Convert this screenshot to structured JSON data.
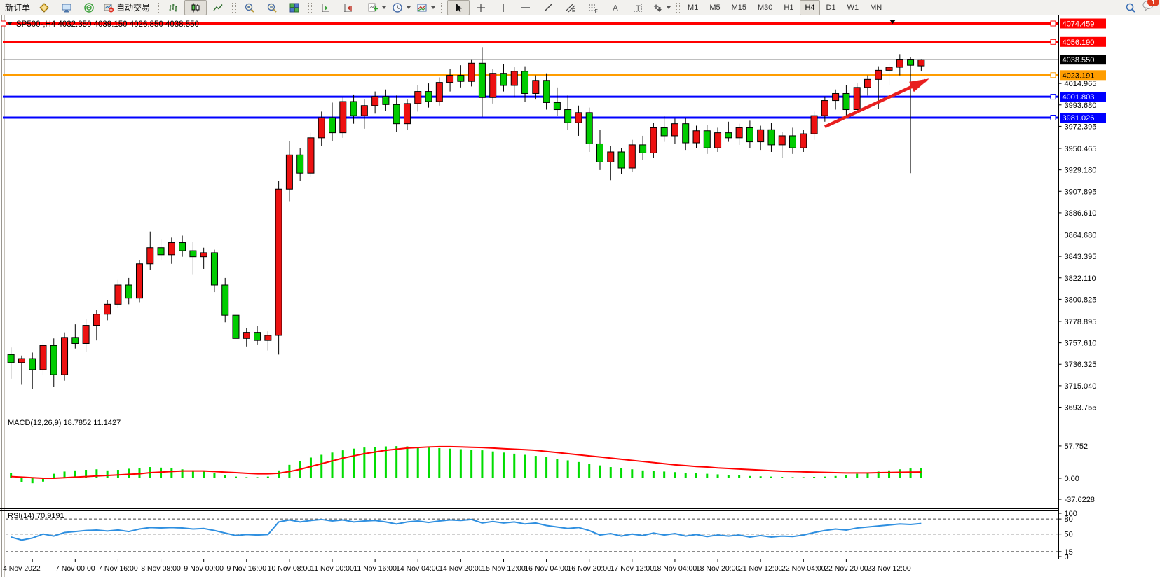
{
  "toolbar": {
    "new_order_label": "新订单",
    "auto_trading_label": "自动交易",
    "timeframes": [
      "M1",
      "M5",
      "M15",
      "M30",
      "H1",
      "H4",
      "D1",
      "W1",
      "MN"
    ],
    "selected_timeframe": "H4",
    "notification_count": "1"
  },
  "chart": {
    "title": "SP500-,H4",
    "ohlc_text": "4032.350 4039.150 4026.850 4038.550",
    "current_price": "4038.550",
    "colors": {
      "up_candle": "#ed1111",
      "down_candle": "#00cc00",
      "macd_histogram": "#00dd00",
      "macd_signal": "#ff0000",
      "rsi_line": "#2e8fe0",
      "current_price_line": "#000000"
    },
    "hlines": [
      {
        "label": "4074.459",
        "value": 4074.459,
        "color": "#ff0000",
        "text_color": "#ffffff"
      },
      {
        "label": "4056.190",
        "value": 4056.19,
        "color": "#ff0000",
        "text_color": "#ffffff"
      },
      {
        "label": "4023.191",
        "value": 4023.191,
        "color": "#ff9d00",
        "text_color": "#000000"
      },
      {
        "label": "4001.803",
        "value": 4001.803,
        "color": "#0000ff",
        "text_color": "#ffffff"
      },
      {
        "label": "3981.026",
        "value": 3981.026,
        "color": "#0000ff",
        "text_color": "#ffffff"
      }
    ],
    "y_ticks": [
      "4014.965",
      "3993.680",
      "3972.395",
      "3950.465",
      "3929.180",
      "3907.895",
      "3886.610",
      "3864.680",
      "3843.395",
      "3822.110",
      "3800.825",
      "3778.895",
      "3757.610",
      "3736.325",
      "3715.040",
      "3693.755"
    ],
    "x_labels": [
      "4 Nov 2022",
      "7 Nov 00:00",
      "7 Nov 16:00",
      "8 Nov 08:00",
      "9 Nov 00:00",
      "9 Nov 16:00",
      "10 Nov 08:00",
      "11 Nov 00:00",
      "11 Nov 16:00",
      "14 Nov 04:00",
      "14 Nov 20:00",
      "15 Nov 12:00",
      "16 Nov 04:00",
      "16 Nov 20:00",
      "17 Nov 12:00",
      "18 Nov 04:00",
      "18 Nov 20:00",
      "21 Nov 12:00",
      "22 Nov 04:00",
      "22 Nov 20:00",
      "23 Nov 12:00"
    ]
  },
  "macd": {
    "label": "MACD(12,26,9)",
    "values_text": "18.7852 11.1427",
    "ticks": [
      "57.752",
      "0.00",
      "-37.6228"
    ],
    "tick_values": [
      57.752,
      0,
      -37.6228
    ]
  },
  "rsi": {
    "label": "RSI(14)",
    "value_text": "70.9191",
    "ticks": [
      "100",
      "80",
      "50",
      "15",
      "0"
    ],
    "tick_values": [
      100,
      80,
      50,
      15,
      0
    ],
    "level_lines": [
      80,
      50,
      15
    ]
  },
  "chart_data": {
    "type": "candlestick",
    "symbol": "SP500-",
    "timeframe": "H4",
    "title": "SP500-,H4 4032.350 4039.150 4026.850 4038.550",
    "price_range_visible": [
      3693.755,
      4074.459
    ],
    "up_color_convention": "red-up-green-down",
    "candles": [
      [
        3746,
        3753,
        3722,
        3738
      ],
      [
        3738,
        3745,
        3716,
        3742
      ],
      [
        3742,
        3748,
        3712,
        3731
      ],
      [
        3731,
        3759,
        3726,
        3755
      ],
      [
        3755,
        3762,
        3714,
        3726
      ],
      [
        3726,
        3768,
        3720,
        3763
      ],
      [
        3763,
        3776,
        3752,
        3757
      ],
      [
        3757,
        3781,
        3749,
        3775
      ],
      [
        3775,
        3790,
        3760,
        3786
      ],
      [
        3786,
        3800,
        3780,
        3796
      ],
      [
        3796,
        3820,
        3792,
        3815
      ],
      [
        3815,
        3822,
        3796,
        3802
      ],
      [
        3802,
        3840,
        3798,
        3836
      ],
      [
        3836,
        3868,
        3830,
        3852
      ],
      [
        3852,
        3860,
        3840,
        3845
      ],
      [
        3845,
        3862,
        3836,
        3857
      ],
      [
        3857,
        3864,
        3843,
        3849
      ],
      [
        3849,
        3858,
        3825,
        3843
      ],
      [
        3843,
        3852,
        3831,
        3847
      ],
      [
        3847,
        3850,
        3808,
        3815
      ],
      [
        3815,
        3822,
        3778,
        3785
      ],
      [
        3785,
        3794,
        3756,
        3762
      ],
      [
        3762,
        3772,
        3754,
        3768
      ],
      [
        3768,
        3774,
        3756,
        3760
      ],
      [
        3760,
        3769,
        3750,
        3765
      ],
      [
        3765,
        3918,
        3746,
        3910
      ],
      [
        3910,
        3958,
        3898,
        3944
      ],
      [
        3944,
        3951,
        3918,
        3926
      ],
      [
        3926,
        3966,
        3922,
        3961
      ],
      [
        3961,
        3987,
        3953,
        3981
      ],
      [
        3981,
        3996,
        3958,
        3966
      ],
      [
        3966,
        4001,
        3961,
        3997
      ],
      [
        3997,
        4004,
        3975,
        3983
      ],
      [
        3983,
        3999,
        3970,
        3993
      ],
      [
        3993,
        4007,
        3985,
        4002
      ],
      [
        4002,
        4009,
        3988,
        3994
      ],
      [
        3994,
        4003,
        3967,
        3975
      ],
      [
        3975,
        3999,
        3969,
        3995
      ],
      [
        3995,
        4013,
        3987,
        4007
      ],
      [
        4007,
        4015,
        3991,
        3997
      ],
      [
        3997,
        4021,
        3993,
        4016
      ],
      [
        4016,
        4029,
        4007,
        4023
      ],
      [
        4023,
        4033,
        4011,
        4017
      ],
      [
        4017,
        4039,
        4012,
        4035
      ],
      [
        4035,
        4051,
        3982,
        4001
      ],
      [
        4001,
        4029,
        3995,
        4025
      ],
      [
        4025,
        4034,
        4007,
        4013
      ],
      [
        4013,
        4031,
        4001,
        4027
      ],
      [
        4027,
        4032,
        3997,
        4005
      ],
      [
        4005,
        4023,
        3999,
        4018
      ],
      [
        4018,
        4025,
        3989,
        3996
      ],
      [
        3996,
        4011,
        3983,
        3989
      ],
      [
        3989,
        4003,
        3969,
        3976
      ],
      [
        3976,
        3993,
        3963,
        3986
      ],
      [
        3986,
        3991,
        3947,
        3955
      ],
      [
        3955,
        3969,
        3929,
        3937
      ],
      [
        3937,
        3953,
        3919,
        3947
      ],
      [
        3947,
        3951,
        3925,
        3931
      ],
      [
        3931,
        3959,
        3927,
        3954
      ],
      [
        3954,
        3963,
        3939,
        3946
      ],
      [
        3946,
        3976,
        3941,
        3971
      ],
      [
        3971,
        3983,
        3957,
        3963
      ],
      [
        3963,
        3980,
        3955,
        3975
      ],
      [
        3975,
        3981,
        3949,
        3956
      ],
      [
        3956,
        3973,
        3951,
        3968
      ],
      [
        3968,
        3974,
        3945,
        3951
      ],
      [
        3951,
        3971,
        3947,
        3966
      ],
      [
        3966,
        3977,
        3957,
        3961
      ],
      [
        3961,
        3975,
        3954,
        3971
      ],
      [
        3971,
        3978,
        3951,
        3957
      ],
      [
        3957,
        3973,
        3949,
        3969
      ],
      [
        3969,
        3976,
        3947,
        3954
      ],
      [
        3954,
        3967,
        3941,
        3963
      ],
      [
        3963,
        3971,
        3945,
        3951
      ],
      [
        3951,
        3969,
        3947,
        3965
      ],
      [
        3965,
        3987,
        3959,
        3983
      ],
      [
        3983,
        4002,
        3977,
        3998
      ],
      [
        3998,
        4009,
        3989,
        4005
      ],
      [
        4005,
        4013,
        3981,
        3989
      ],
      [
        3989,
        4015,
        3985,
        4011
      ],
      [
        4011,
        4023,
        4003,
        4019
      ],
      [
        4019,
        4032,
        3990,
        4028
      ],
      [
        4028,
        4035,
        4013,
        4031
      ],
      [
        4031,
        4044,
        4023,
        4039
      ],
      [
        4039,
        4041,
        3926,
        4033
      ],
      [
        4032.35,
        4039.15,
        4026.85,
        4038.55
      ]
    ],
    "macd_histogram": [
      10,
      -7,
      -9,
      -6,
      8,
      12,
      14,
      15,
      16,
      14,
      15,
      17,
      18,
      20,
      19,
      18,
      16,
      14,
      12,
      9,
      6,
      3,
      2,
      2,
      3,
      14,
      24,
      31,
      37,
      42,
      46,
      50,
      53,
      55,
      56,
      57,
      57.5,
      57,
      56,
      55,
      54,
      53,
      52,
      51,
      50,
      48,
      46,
      44,
      42,
      40,
      38,
      35,
      32,
      29,
      26,
      23,
      20,
      18,
      16,
      14,
      13,
      12,
      11,
      10,
      9,
      8,
      7,
      6,
      5,
      4,
      3.5,
      3,
      2.5,
      2,
      2,
      2.5,
      3,
      4,
      6,
      8,
      10,
      12,
      14,
      16,
      17.5,
      18.79
    ],
    "macd_signal": [
      3,
      2,
      1,
      0,
      0,
      1,
      2,
      3,
      4,
      5,
      6,
      7,
      8,
      10,
      11,
      12,
      13,
      13,
      13,
      12,
      11,
      10,
      9,
      8,
      8,
      9,
      12,
      16,
      21,
      26,
      31,
      36,
      40,
      44,
      47,
      50,
      52,
      54,
      55,
      56,
      56.5,
      56.5,
      56,
      55.5,
      55,
      54,
      53,
      52,
      51,
      50,
      48,
      46,
      44,
      42,
      40,
      38,
      36,
      34,
      32,
      30,
      28,
      26,
      24,
      22.5,
      21,
      20,
      18.5,
      17.5,
      16.5,
      15.5,
      14.5,
      13.5,
      12.5,
      12,
      11.5,
      11,
      10.5,
      10,
      9.5,
      9.5,
      9.5,
      10,
      10.3,
      10.6,
      10.9,
      11.14
    ],
    "rsi_values": [
      44,
      38,
      42,
      50,
      46,
      53,
      55,
      57,
      58,
      56,
      58,
      55,
      60,
      63,
      62,
      63,
      62,
      60,
      61,
      57,
      52,
      47,
      49,
      48,
      49,
      74,
      78,
      74,
      77,
      79,
      76,
      78,
      74,
      76,
      77,
      74,
      70,
      74,
      76,
      73,
      76,
      78,
      77,
      79,
      72,
      75,
      72,
      74,
      70,
      72,
      67,
      64,
      61,
      63,
      57,
      48,
      51,
      46,
      50,
      47,
      52,
      48,
      51,
      46,
      49,
      45,
      48,
      46,
      48,
      44,
      47,
      44,
      46,
      45,
      48,
      53,
      57,
      60,
      58,
      62,
      64,
      66,
      68,
      70,
      69,
      70.92
    ],
    "annotations": [
      {
        "type": "trend-arrow",
        "color": "#e81f1f",
        "from_bar": 76,
        "from_price": 3972,
        "to_bar": 85.4,
        "to_price": 4018
      }
    ]
  }
}
